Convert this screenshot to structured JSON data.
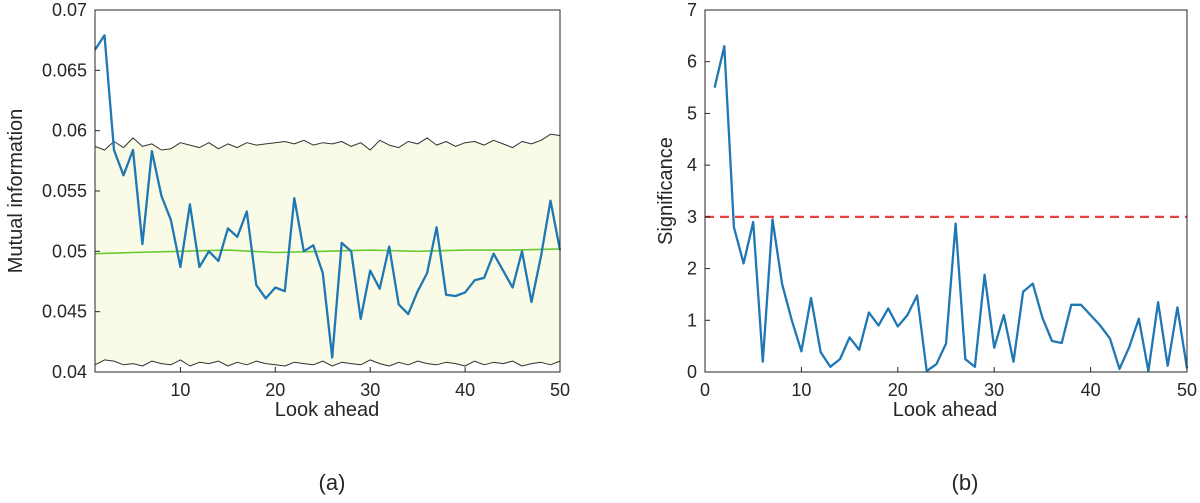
{
  "chart_data": [
    {
      "type": "line",
      "panel_label": "(a)",
      "xlabel": "Look ahead",
      "ylabel": "Mutual information",
      "xlim": [
        1,
        50
      ],
      "ylim": [
        0.04,
        0.07
      ],
      "xticks": [
        10,
        20,
        30,
        40,
        50
      ],
      "yticks": [
        0.04,
        0.045,
        0.05,
        0.055,
        0.06,
        0.065,
        0.07
      ],
      "ytick_labels": [
        "0.04",
        "0.045",
        "0.05",
        "0.055",
        "0.06",
        "0.065",
        "0.07"
      ],
      "band_color": "#fafbe6",
      "series": [
        {
          "color": "#1f77b4",
          "x": [
            1,
            2,
            3,
            4,
            5,
            6,
            7,
            8,
            9,
            10,
            11,
            12,
            13,
            14,
            15,
            16,
            17,
            18,
            19,
            20,
            21,
            22,
            23,
            24,
            25,
            26,
            27,
            28,
            29,
            30,
            31,
            32,
            33,
            34,
            35,
            36,
            37,
            38,
            39,
            40,
            41,
            42,
            43,
            44,
            45,
            46,
            47,
            48,
            49,
            50
          ],
          "values": [
            0.0667,
            0.0679,
            0.0584,
            0.0563,
            0.0584,
            0.0506,
            0.0583,
            0.0546,
            0.0526,
            0.0487,
            0.0539,
            0.0487,
            0.05,
            0.0492,
            0.0519,
            0.0512,
            0.0533,
            0.0472,
            0.0461,
            0.047,
            0.0467,
            0.0544,
            0.05,
            0.0505,
            0.0482,
            0.0412,
            0.0507,
            0.05,
            0.0444,
            0.0484,
            0.0469,
            0.0504,
            0.0456,
            0.0448,
            0.0467,
            0.0482,
            0.052,
            0.0464,
            0.0463,
            0.0466,
            0.0476,
            0.0478,
            0.0498,
            0.0484,
            0.047,
            0.05,
            0.0458,
            0.0496,
            0.0542,
            0.0501
          ]
        },
        {
          "color": "#66cc33",
          "x": [
            1,
            5,
            10,
            15,
            20,
            25,
            30,
            35,
            40,
            45,
            50
          ],
          "values": [
            0.0498,
            0.0499,
            0.05,
            0.0501,
            0.0499,
            0.05,
            0.0501,
            0.05,
            0.0501,
            0.0501,
            0.0502
          ]
        },
        {
          "color": "#333333",
          "x": [
            1,
            2,
            3,
            4,
            5,
            6,
            7,
            8,
            9,
            10,
            11,
            12,
            13,
            14,
            15,
            16,
            17,
            18,
            19,
            20,
            21,
            22,
            23,
            24,
            25,
            26,
            27,
            28,
            29,
            30,
            31,
            32,
            33,
            34,
            35,
            36,
            37,
            38,
            39,
            40,
            41,
            42,
            43,
            44,
            45,
            46,
            47,
            48,
            49,
            50
          ],
          "values": [
            0.0587,
            0.0584,
            0.0591,
            0.0586,
            0.0594,
            0.0587,
            0.0589,
            0.0584,
            0.0585,
            0.059,
            0.0588,
            0.0586,
            0.059,
            0.0585,
            0.0589,
            0.0586,
            0.059,
            0.0588,
            0.0589,
            0.059,
            0.0591,
            0.0589,
            0.0592,
            0.0588,
            0.059,
            0.0589,
            0.0591,
            0.0587,
            0.059,
            0.0584,
            0.0592,
            0.0588,
            0.0586,
            0.0591,
            0.0589,
            0.0594,
            0.0588,
            0.0591,
            0.0587,
            0.059,
            0.0591,
            0.0588,
            0.0592,
            0.0589,
            0.0586,
            0.0591,
            0.0589,
            0.0592,
            0.0597,
            0.0596
          ]
        },
        {
          "color": "#333333",
          "x": [
            1,
            2,
            3,
            4,
            5,
            6,
            7,
            8,
            9,
            10,
            11,
            12,
            13,
            14,
            15,
            16,
            17,
            18,
            19,
            20,
            21,
            22,
            23,
            24,
            25,
            26,
            27,
            28,
            29,
            30,
            31,
            32,
            33,
            34,
            35,
            36,
            37,
            38,
            39,
            40,
            41,
            42,
            43,
            44,
            45,
            46,
            47,
            48,
            49,
            50
          ],
          "values": [
            0.0406,
            0.041,
            0.0409,
            0.0406,
            0.0407,
            0.0405,
            0.0409,
            0.0407,
            0.0406,
            0.041,
            0.0405,
            0.0408,
            0.0407,
            0.0409,
            0.0405,
            0.0408,
            0.0406,
            0.0409,
            0.0407,
            0.0406,
            0.0405,
            0.0408,
            0.0407,
            0.0406,
            0.0409,
            0.0405,
            0.0408,
            0.0407,
            0.0406,
            0.041,
            0.0407,
            0.0405,
            0.0408,
            0.0406,
            0.0409,
            0.0407,
            0.0406,
            0.0408,
            0.0407,
            0.0405,
            0.0409,
            0.0406,
            0.0408,
            0.0407,
            0.0409,
            0.0405,
            0.0407,
            0.0408,
            0.0406,
            0.0409
          ]
        }
      ]
    },
    {
      "type": "line",
      "panel_label": "(b)",
      "xlabel": "Look ahead",
      "ylabel": "Significance",
      "xlim": [
        0,
        50
      ],
      "ylim": [
        0,
        7
      ],
      "xticks": [
        0,
        10,
        20,
        30,
        40,
        50
      ],
      "yticks": [
        0,
        1,
        2,
        3,
        4,
        5,
        6,
        7
      ],
      "threshold": {
        "y": 3,
        "color": "#e8423b",
        "style": "dashed"
      },
      "series": [
        {
          "color": "#1f77b4",
          "x": [
            1,
            2,
            3,
            4,
            5,
            6,
            7,
            8,
            9,
            10,
            11,
            12,
            13,
            14,
            15,
            16,
            17,
            18,
            19,
            20,
            21,
            22,
            23,
            24,
            25,
            26,
            27,
            28,
            29,
            30,
            31,
            32,
            33,
            34,
            35,
            36,
            37,
            38,
            39,
            40,
            41,
            42,
            43,
            44,
            45,
            46,
            47,
            48,
            49,
            50
          ],
          "values": [
            5.5,
            6.3,
            2.8,
            2.1,
            2.9,
            0.2,
            2.95,
            1.7,
            1.0,
            0.4,
            1.43,
            0.38,
            0.1,
            0.25,
            0.67,
            0.43,
            1.15,
            0.9,
            1.23,
            0.88,
            1.1,
            1.48,
            0.02,
            0.15,
            0.55,
            2.87,
            0.25,
            0.1,
            1.88,
            0.47,
            1.1,
            0.2,
            1.55,
            1.71,
            1.05,
            0.6,
            0.56,
            1.3,
            1.3,
            1.1,
            0.9,
            0.65,
            0.06,
            0.48,
            1.03,
            0.02,
            1.35,
            0.12,
            1.25,
            0.07
          ]
        }
      ]
    }
  ]
}
